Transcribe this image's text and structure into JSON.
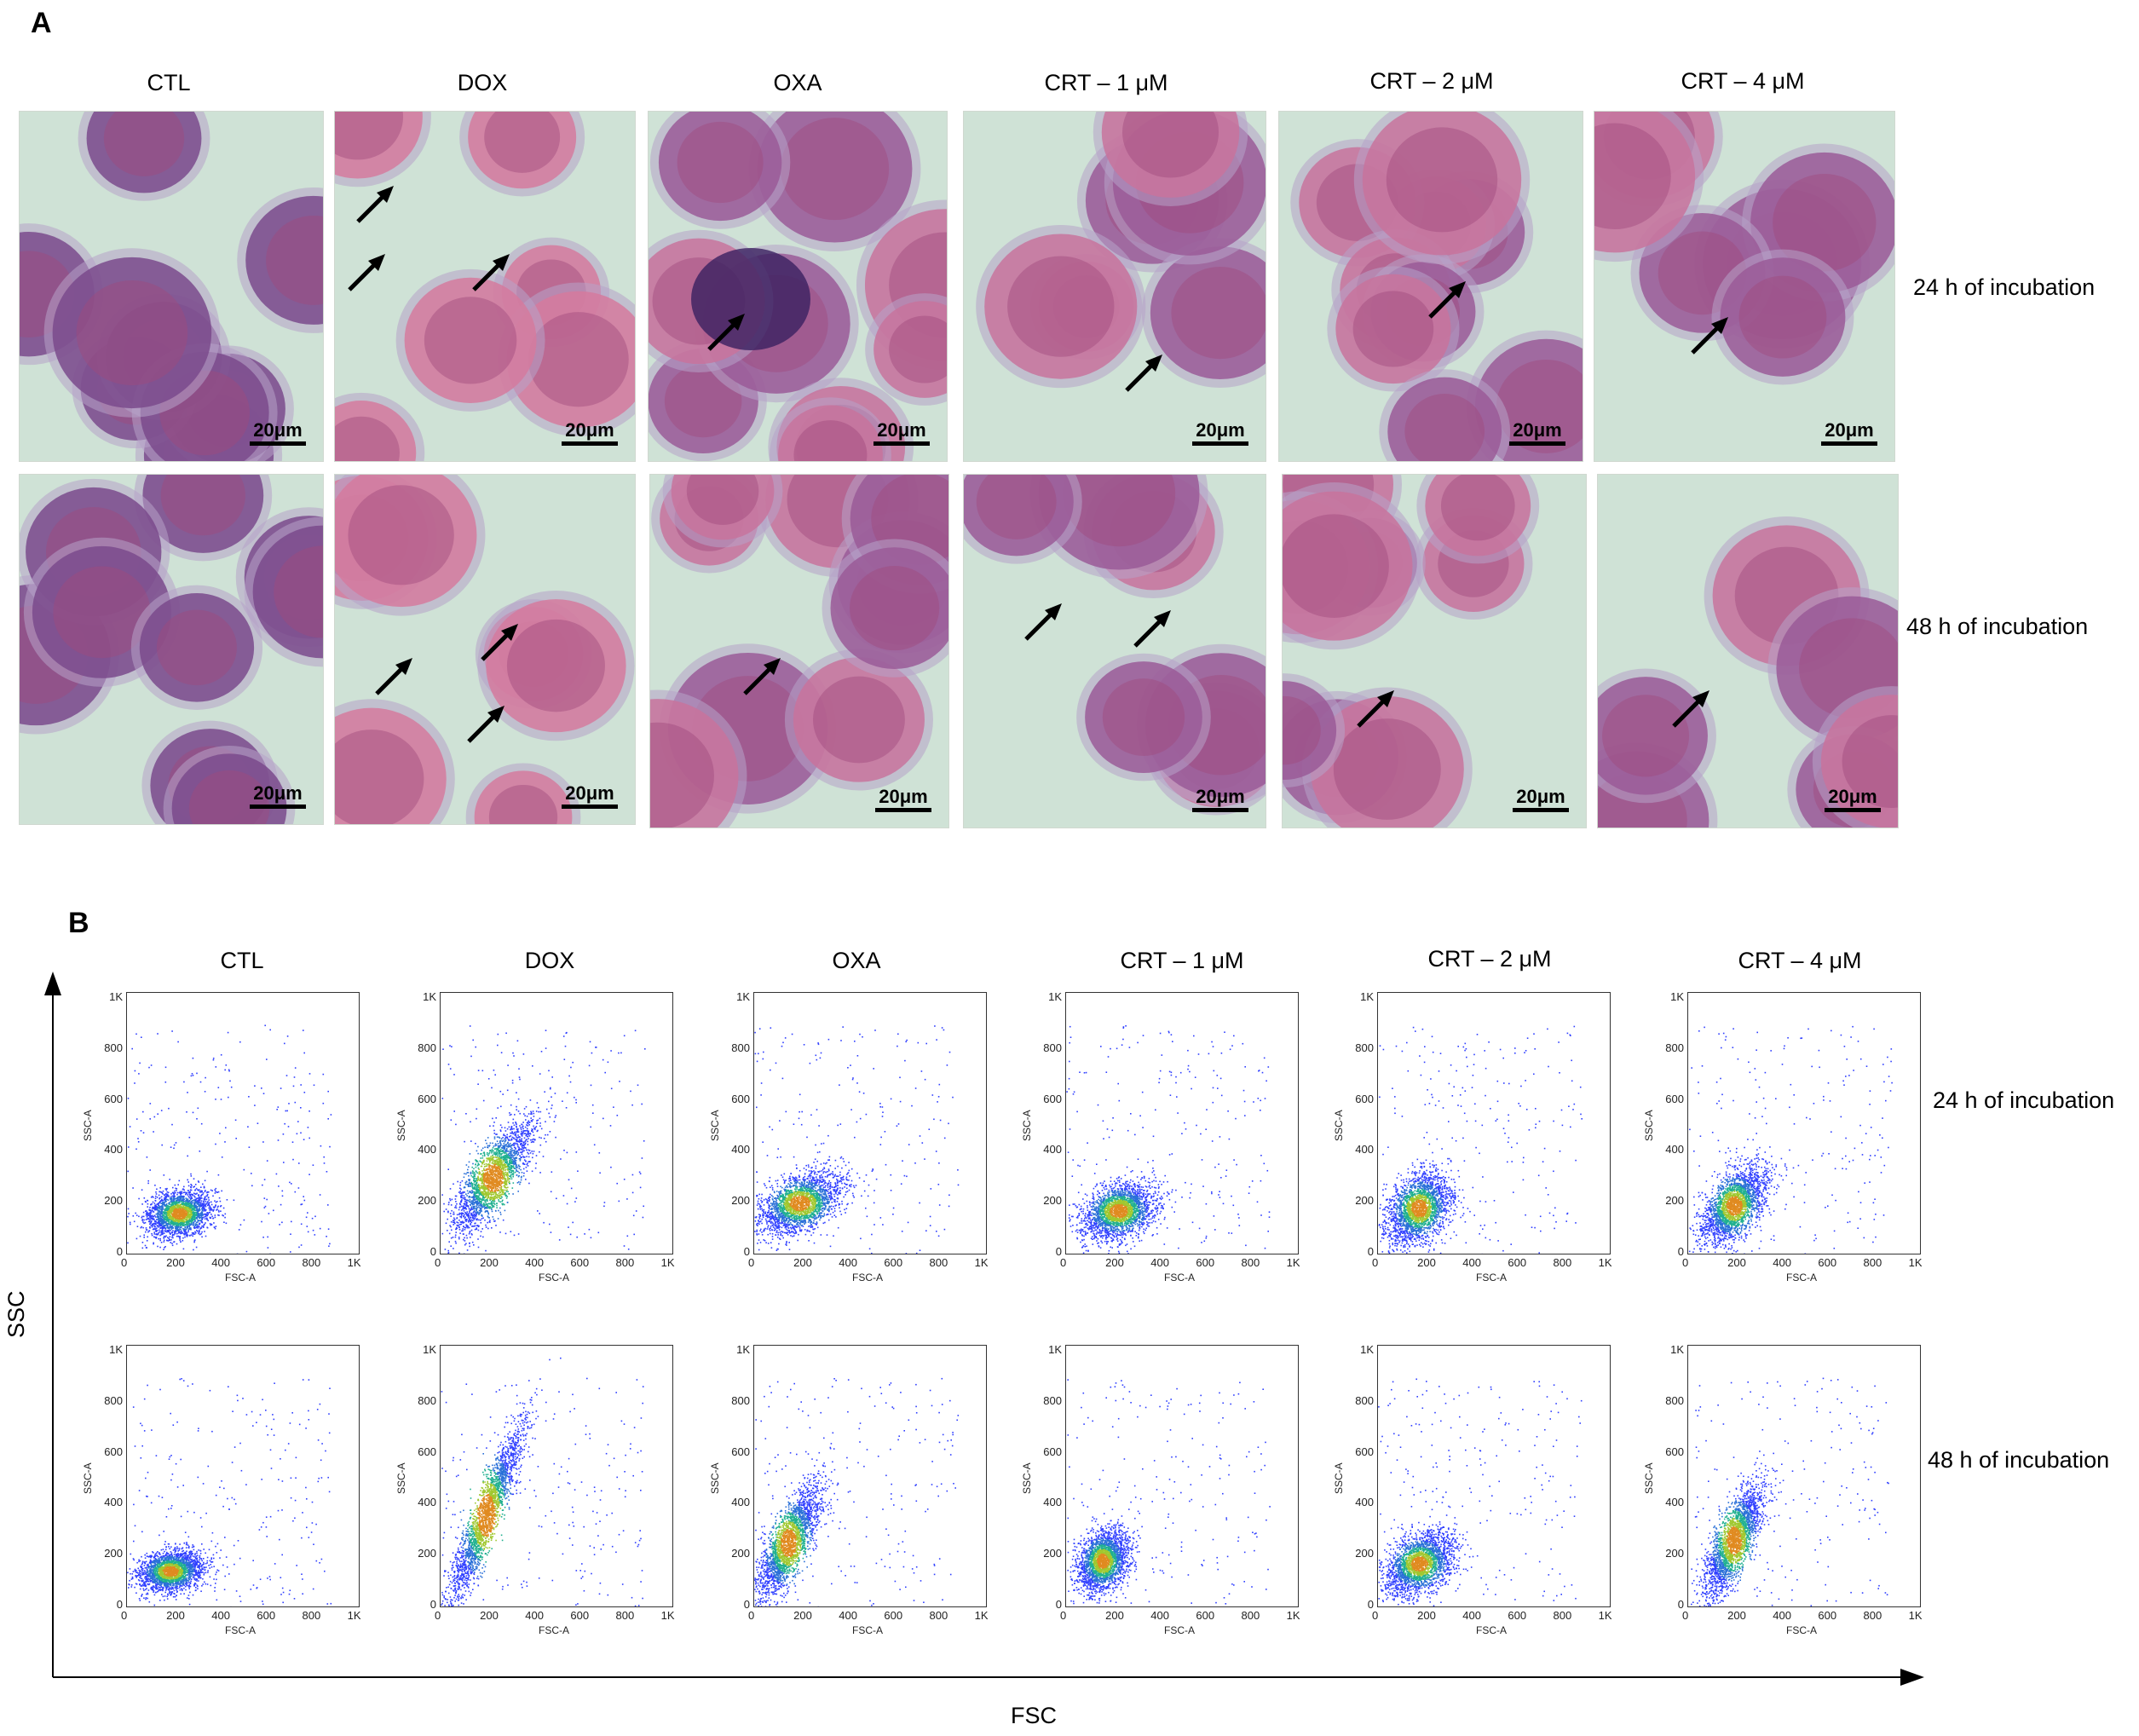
{
  "panelA": {
    "letter": "A",
    "columns": [
      "CTL",
      "DOX",
      "OXA",
      "CRT – 1 μM",
      "CRT – 2 μM",
      "CRT – 4 μM"
    ],
    "rows": [
      "24 h of incubation",
      "48 h of incubation"
    ],
    "scale_bar": "20μm"
  },
  "panelB": {
    "letter": "B",
    "columns": [
      "CTL",
      "DOX",
      "OXA",
      "CRT – 1 μM",
      "CRT – 2 μM",
      "CRT – 4 μM"
    ],
    "rows": [
      "24 h of incubation",
      "48 h of incubation"
    ],
    "y_axis": "SSC",
    "x_axis": "FSC",
    "plot_ylabel": "SSC-A",
    "plot_xlabel": "FSC-A",
    "x_ticks": [
      "0",
      "200",
      "400",
      "600",
      "800",
      "1K"
    ],
    "y_ticks": [
      "0",
      "200",
      "400",
      "600",
      "800",
      "1K"
    ]
  },
  "colors": {
    "stain_nucleus": "#8a3a7a",
    "stain_cyto": "#c86a96",
    "background": "#cfe2d6",
    "dot": "#3040ff"
  }
}
